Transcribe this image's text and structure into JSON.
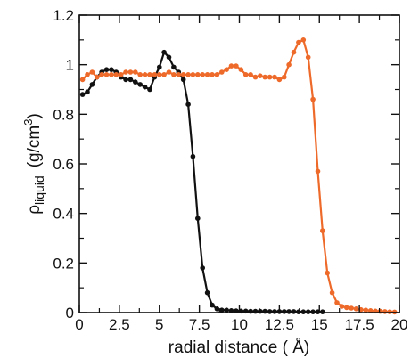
{
  "chart_data": {
    "type": "line",
    "xlabel": "radial distance ( Å)",
    "ylabel": {
      "base": "ρ",
      "subscript": "liquid",
      "units": "(g/cm",
      "superscript": "3",
      "units_end": ")"
    },
    "xlim": [
      0,
      20
    ],
    "ylim": [
      0,
      1.2
    ],
    "x_ticks": [
      0,
      2.5,
      5,
      7.5,
      10,
      12.5,
      15,
      17.5,
      20
    ],
    "x_tick_labels": [
      "0",
      "2.5",
      "5",
      "7.5",
      "10",
      "12.5",
      "15",
      "17.5",
      "20"
    ],
    "y_ticks": [
      0,
      0.2,
      0.4,
      0.6,
      0.8,
      1.0,
      1.2
    ],
    "y_tick_labels": [
      "0",
      "0.2",
      "0.4",
      "0.6",
      "0.8",
      "1",
      "1.2"
    ],
    "grid": false,
    "series": [
      {
        "color": "#111111",
        "marker": "circle",
        "x": [
          0.2,
          0.5,
          0.8,
          1.1,
          1.4,
          1.7,
          2.0,
          2.3,
          2.6,
          2.9,
          3.2,
          3.5,
          3.8,
          4.1,
          4.4,
          4.7,
          5.0,
          5.3,
          5.6,
          5.9,
          6.2,
          6.5,
          6.8,
          7.1,
          7.4,
          7.7,
          8.0,
          8.3,
          8.6,
          8.9,
          9.2,
          9.5,
          9.8,
          10.1,
          10.4,
          10.7,
          11.0,
          11.3,
          11.6,
          11.9,
          12.2,
          12.5,
          12.8,
          13.1,
          13.4,
          13.7,
          14.0,
          14.3,
          14.6,
          14.9,
          15.2
        ],
        "y": [
          0.88,
          0.89,
          0.92,
          0.95,
          0.97,
          0.98,
          0.98,
          0.97,
          0.95,
          0.94,
          0.94,
          0.93,
          0.92,
          0.91,
          0.9,
          0.95,
          0.99,
          1.05,
          1.03,
          0.99,
          0.97,
          0.94,
          0.84,
          0.63,
          0.38,
          0.18,
          0.08,
          0.03,
          0.015,
          0.01,
          0.01,
          0.008,
          0.007,
          0.006,
          0.006,
          0.005,
          0.005,
          0.005,
          0.005,
          0.004,
          0.004,
          0.004,
          0.004,
          0.004,
          0.004,
          0.003,
          0.003,
          0.003,
          0.003,
          0.003,
          0.003
        ]
      },
      {
        "color": "#ee6a2a",
        "marker": "circle",
        "x": [
          0.2,
          0.5,
          0.8,
          1.1,
          1.4,
          1.7,
          2.0,
          2.3,
          2.6,
          2.9,
          3.2,
          3.5,
          3.8,
          4.1,
          4.4,
          4.7,
          5.0,
          5.3,
          5.6,
          5.9,
          6.2,
          6.5,
          6.8,
          7.1,
          7.4,
          7.7,
          8.0,
          8.3,
          8.6,
          8.9,
          9.2,
          9.5,
          9.8,
          10.1,
          10.4,
          10.7,
          11.0,
          11.3,
          11.6,
          11.9,
          12.2,
          12.5,
          12.8,
          13.1,
          13.4,
          13.7,
          14.0,
          14.3,
          14.6,
          14.9,
          15.2,
          15.5,
          15.8,
          16.1,
          16.4,
          16.7,
          17.0,
          17.3,
          17.6,
          17.9,
          18.2,
          18.5,
          18.8,
          19.1,
          19.4,
          19.7
        ],
        "y": [
          0.94,
          0.96,
          0.97,
          0.95,
          0.96,
          0.96,
          0.96,
          0.96,
          0.96,
          0.97,
          0.97,
          0.97,
          0.96,
          0.96,
          0.96,
          0.96,
          0.96,
          0.96,
          0.97,
          0.96,
          0.96,
          0.96,
          0.96,
          0.96,
          0.96,
          0.96,
          0.96,
          0.96,
          0.96,
          0.97,
          0.98,
          0.995,
          0.995,
          0.98,
          0.96,
          0.96,
          0.95,
          0.955,
          0.95,
          0.95,
          0.95,
          0.94,
          0.95,
          1.0,
          1.05,
          1.09,
          1.1,
          1.03,
          0.86,
          0.57,
          0.33,
          0.16,
          0.08,
          0.04,
          0.025,
          0.02,
          0.018,
          0.015,
          0.012,
          0.01,
          0.008,
          0.006,
          0.005,
          0.004,
          0.003,
          0.002
        ]
      }
    ]
  }
}
